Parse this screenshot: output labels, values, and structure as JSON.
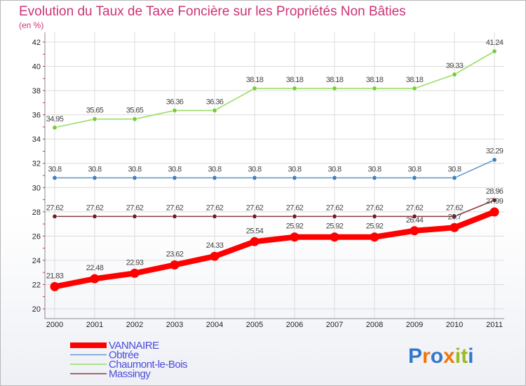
{
  "chart_data": {
    "type": "line",
    "title": "Evolution du Taux de Taxe Foncière sur les Propriétés Non Bâties",
    "subtitle": "(en %)",
    "xlabel": "",
    "ylabel": "",
    "x": [
      "2000",
      "2001",
      "2002",
      "2003",
      "2004",
      "2005",
      "2006",
      "2007",
      "2008",
      "2009",
      "2010",
      "2011"
    ],
    "ylim": [
      20,
      42
    ],
    "yticks": [
      "20",
      "22",
      "24",
      "26",
      "28",
      "30",
      "32",
      "34",
      "36",
      "38",
      "40",
      "42"
    ],
    "grid": true,
    "legend_position": "bottom-left",
    "series": [
      {
        "name": "VANNAIRE",
        "color": "#ff0000",
        "point_color": "#ff0000",
        "emphasis": "thick",
        "values": [
          21.83,
          22.48,
          22.93,
          23.62,
          24.33,
          25.54,
          25.92,
          25.92,
          25.92,
          26.44,
          26.7,
          27.99
        ],
        "labels": [
          "21.83",
          "22.48",
          "22.93",
          "23.62",
          "24.33",
          "25.54",
          "25.92",
          "25.92",
          "25.92",
          "26.44",
          "26.7",
          "27.99"
        ]
      },
      {
        "name": "Obtrée",
        "color": "#6699cc",
        "point_color": "#3d7fc1",
        "emphasis": "normal",
        "values": [
          30.8,
          30.8,
          30.8,
          30.8,
          30.8,
          30.8,
          30.8,
          30.8,
          30.8,
          30.8,
          30.8,
          32.29
        ],
        "labels": [
          "30.8",
          "30.8",
          "30.8",
          "30.8",
          "30.8",
          "30.8",
          "30.8",
          "30.8",
          "30.8",
          "30.8",
          "30.8",
          "32.29"
        ]
      },
      {
        "name": "Chaumont-le-Bois",
        "color": "#99dd66",
        "point_color": "#77cc33",
        "emphasis": "normal",
        "values": [
          34.95,
          35.65,
          35.65,
          36.36,
          36.36,
          38.18,
          38.18,
          38.18,
          38.18,
          38.18,
          39.33,
          41.24
        ],
        "labels": [
          "34.95",
          "35.65",
          "35.65",
          "36.36",
          "36.36",
          "38.18",
          "38.18",
          "38.18",
          "38.18",
          "38.18",
          "39.33",
          "41.24"
        ]
      },
      {
        "name": "Massingy",
        "color": "#8b3a3a",
        "point_color": "#6b1f1f",
        "emphasis": "normal",
        "values": [
          27.62,
          27.62,
          27.62,
          27.62,
          27.62,
          27.62,
          27.62,
          27.62,
          27.62,
          27.62,
          27.62,
          28.96
        ],
        "labels": [
          "27.62",
          "27.62",
          "27.62",
          "27.62",
          "27.62",
          "27.62",
          "27.62",
          "27.62",
          "27.62",
          "27.62",
          "27.62",
          "28.96"
        ]
      }
    ]
  },
  "logo": {
    "text": "Proxiti",
    "letters": [
      "P",
      "r",
      "o",
      "x",
      "i",
      "t",
      "i"
    ],
    "colors": [
      "#3377cc",
      "#ee7711",
      "#3377cc",
      "#ee7711",
      "#99bb22",
      "#99bb22",
      "#3377cc"
    ]
  }
}
